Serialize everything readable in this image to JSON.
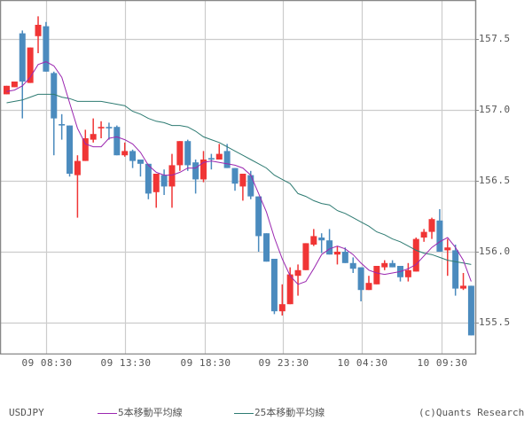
{
  "symbol": "USDJPY",
  "legend": {
    "ma5_label": "5本移動平均線",
    "ma25_label": "25本移動平均線",
    "copyright": "(c)Quants Research"
  },
  "colors": {
    "up": "#f03535",
    "down": "#4b8bbe",
    "ma5": "#9b27b0",
    "ma25": "#2e7b72",
    "grid": "#cccccc",
    "border": "#888888"
  },
  "chart_data": {
    "type": "candlestick",
    "title": "USDJPY",
    "xlabel": "",
    "ylabel": "",
    "ylim": [
      155.34,
      157.77
    ],
    "yticks": [
      157.5,
      157.0,
      156.5,
      156.0,
      155.5
    ],
    "ytick_labels": [
      "157.5",
      "157.0",
      "156.5",
      "156.0",
      "155.5"
    ],
    "xtick_labels": [
      "09 08:30",
      "09 13:30",
      "09 18:30",
      "09 23:30",
      "10 04:30",
      "10 09:30"
    ],
    "xtick_candle_index": [
      5,
      15,
      25,
      35,
      45,
      55
    ],
    "grid": true,
    "legend_position": "bottom",
    "candles": [
      {
        "o": 157.11,
        "h": 157.17,
        "l": 157.11,
        "c": 157.17
      },
      {
        "o": 157.16,
        "h": 157.2,
        "l": 157.16,
        "c": 157.2
      },
      {
        "o": 157.54,
        "h": 157.56,
        "l": 156.94,
        "c": 157.2
      },
      {
        "o": 157.19,
        "h": 157.44,
        "l": 157.19,
        "c": 157.44
      },
      {
        "o": 157.52,
        "h": 157.66,
        "l": 157.4,
        "c": 157.6
      },
      {
        "o": 157.59,
        "h": 157.62,
        "l": 157.27,
        "c": 157.27
      },
      {
        "o": 157.26,
        "h": 157.27,
        "l": 156.68,
        "c": 156.94
      },
      {
        "o": 156.9,
        "h": 156.97,
        "l": 156.79,
        "c": 156.89
      },
      {
        "o": 156.89,
        "h": 156.89,
        "l": 156.53,
        "c": 156.55
      },
      {
        "o": 156.54,
        "h": 156.68,
        "l": 156.24,
        "c": 156.64
      },
      {
        "o": 156.64,
        "h": 156.86,
        "l": 156.64,
        "c": 156.8
      },
      {
        "o": 156.79,
        "h": 156.94,
        "l": 156.77,
        "c": 156.83
      },
      {
        "o": 156.87,
        "h": 156.92,
        "l": 156.8,
        "c": 156.88
      },
      {
        "o": 156.88,
        "h": 156.91,
        "l": 156.79,
        "c": 156.87
      },
      {
        "o": 156.88,
        "h": 156.89,
        "l": 156.68,
        "c": 156.68
      },
      {
        "o": 156.68,
        "h": 156.77,
        "l": 156.67,
        "c": 156.71
      },
      {
        "o": 156.71,
        "h": 156.72,
        "l": 156.59,
        "c": 156.64
      },
      {
        "o": 156.65,
        "h": 156.65,
        "l": 156.53,
        "c": 156.62
      },
      {
        "o": 156.62,
        "h": 156.62,
        "l": 156.37,
        "c": 156.41
      },
      {
        "o": 156.42,
        "h": 156.55,
        "l": 156.31,
        "c": 156.55
      },
      {
        "o": 156.54,
        "h": 156.58,
        "l": 156.4,
        "c": 156.46
      },
      {
        "o": 156.46,
        "h": 156.69,
        "l": 156.31,
        "c": 156.61
      },
      {
        "o": 156.61,
        "h": 156.78,
        "l": 156.57,
        "c": 156.78
      },
      {
        "o": 156.78,
        "h": 156.79,
        "l": 156.57,
        "c": 156.61
      },
      {
        "o": 156.63,
        "h": 156.65,
        "l": 156.41,
        "c": 156.51
      },
      {
        "o": 156.51,
        "h": 156.71,
        "l": 156.49,
        "c": 156.65
      },
      {
        "o": 156.66,
        "h": 156.69,
        "l": 156.58,
        "c": 156.65
      },
      {
        "o": 156.65,
        "h": 156.76,
        "l": 156.65,
        "c": 156.69
      },
      {
        "o": 156.71,
        "h": 156.76,
        "l": 156.59,
        "c": 156.59
      },
      {
        "o": 156.59,
        "h": 156.59,
        "l": 156.43,
        "c": 156.48
      },
      {
        "o": 156.46,
        "h": 156.55,
        "l": 156.36,
        "c": 156.55
      },
      {
        "o": 156.54,
        "h": 156.57,
        "l": 156.37,
        "c": 156.39
      },
      {
        "o": 156.39,
        "h": 156.39,
        "l": 156.0,
        "c": 156.11
      },
      {
        "o": 156.13,
        "h": 156.13,
        "l": 155.93,
        "c": 155.93
      },
      {
        "o": 155.95,
        "h": 155.95,
        "l": 155.56,
        "c": 155.58
      },
      {
        "o": 155.58,
        "h": 155.77,
        "l": 155.55,
        "c": 155.63
      },
      {
        "o": 155.63,
        "h": 155.89,
        "l": 155.63,
        "c": 155.84
      },
      {
        "o": 155.83,
        "h": 155.91,
        "l": 155.69,
        "c": 155.87
      },
      {
        "o": 155.87,
        "h": 156.06,
        "l": 155.87,
        "c": 156.06
      },
      {
        "o": 156.05,
        "h": 156.16,
        "l": 156.04,
        "c": 156.11
      },
      {
        "o": 156.1,
        "h": 156.13,
        "l": 155.99,
        "c": 156.08
      },
      {
        "o": 156.08,
        "h": 156.16,
        "l": 155.98,
        "c": 155.98
      },
      {
        "o": 155.98,
        "h": 156.04,
        "l": 155.91,
        "c": 156.0
      },
      {
        "o": 156.0,
        "h": 156.03,
        "l": 155.92,
        "c": 155.92
      },
      {
        "o": 155.92,
        "h": 155.96,
        "l": 155.85,
        "c": 155.88
      },
      {
        "o": 155.89,
        "h": 155.89,
        "l": 155.65,
        "c": 155.73
      },
      {
        "o": 155.73,
        "h": 155.83,
        "l": 155.73,
        "c": 155.78
      },
      {
        "o": 155.77,
        "h": 155.9,
        "l": 155.77,
        "c": 155.9
      },
      {
        "o": 155.89,
        "h": 155.94,
        "l": 155.87,
        "c": 155.92
      },
      {
        "o": 155.92,
        "h": 155.94,
        "l": 155.89,
        "c": 155.89
      },
      {
        "o": 155.9,
        "h": 155.9,
        "l": 155.79,
        "c": 155.82
      },
      {
        "o": 155.82,
        "h": 155.92,
        "l": 155.79,
        "c": 155.87
      },
      {
        "o": 155.86,
        "h": 156.1,
        "l": 155.86,
        "c": 156.09
      },
      {
        "o": 156.1,
        "h": 156.16,
        "l": 156.07,
        "c": 156.14
      },
      {
        "o": 156.14,
        "h": 156.24,
        "l": 156.09,
        "c": 156.23
      },
      {
        "o": 156.22,
        "h": 156.3,
        "l": 156.0,
        "c": 156.0
      },
      {
        "o": 156.01,
        "h": 156.09,
        "l": 155.83,
        "c": 156.03
      },
      {
        "o": 156.01,
        "h": 156.05,
        "l": 155.69,
        "c": 155.74
      },
      {
        "o": 155.74,
        "h": 155.85,
        "l": 155.73,
        "c": 155.76
      },
      {
        "o": 155.76,
        "h": 155.76,
        "l": 155.41,
        "c": 155.41
      }
    ],
    "series": [
      {
        "name": "5本移動平均線",
        "values": [
          157.13,
          157.14,
          157.17,
          157.23,
          157.32,
          157.34,
          157.31,
          157.23,
          157.05,
          156.87,
          156.76,
          156.74,
          156.74,
          156.8,
          156.81,
          156.79,
          156.76,
          156.7,
          156.61,
          156.56,
          156.54,
          156.54,
          156.56,
          156.59,
          156.59,
          156.63,
          156.64,
          156.63,
          156.62,
          156.61,
          156.59,
          156.54,
          156.41,
          156.28,
          156.1,
          155.95,
          155.83,
          155.77,
          155.79,
          155.88,
          155.98,
          156.02,
          156.04,
          156.02,
          155.98,
          155.92,
          155.87,
          155.85,
          155.84,
          155.85,
          155.86,
          155.88,
          155.91,
          155.97,
          156.03,
          156.07,
          156.1,
          156.03,
          155.94,
          155.79
        ]
      },
      {
        "name": "25本移動平均線",
        "values": [
          157.05,
          157.06,
          157.07,
          157.09,
          157.11,
          157.11,
          157.11,
          157.09,
          157.08,
          157.06,
          157.06,
          157.06,
          157.06,
          157.05,
          157.04,
          157.03,
          156.99,
          156.97,
          156.94,
          156.92,
          156.91,
          156.89,
          156.89,
          156.88,
          156.85,
          156.81,
          156.79,
          156.77,
          156.74,
          156.71,
          156.68,
          156.65,
          156.62,
          156.59,
          156.54,
          156.51,
          156.48,
          156.41,
          156.39,
          156.36,
          156.34,
          156.33,
          156.29,
          156.27,
          156.24,
          156.21,
          156.18,
          156.14,
          156.12,
          156.09,
          156.07,
          156.04,
          156.01,
          155.99,
          155.98,
          155.96,
          155.94,
          155.93,
          155.92,
          155.91
        ]
      }
    ]
  }
}
